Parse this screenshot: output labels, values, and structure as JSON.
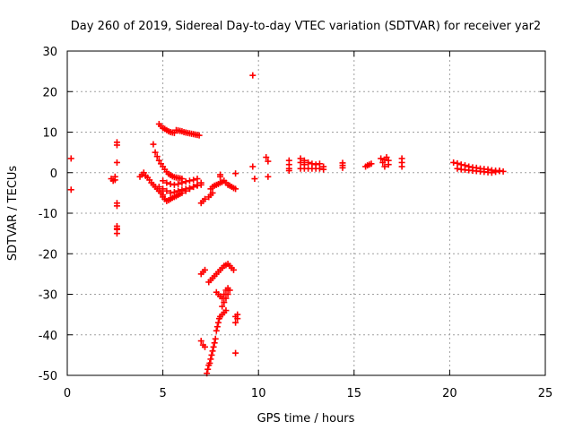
{
  "chart_data": {
    "type": "scatter",
    "title": "Day 260 of 2019, Sidereal Day-to-day VTEC variation (SDTVAR) for receiver yar2",
    "xlabel": "GPS time / hours",
    "ylabel": "SDTVAR / TECUs",
    "xlim": [
      0,
      25
    ],
    "ylim": [
      -50,
      30
    ],
    "xticks": [
      "0",
      "5",
      "10",
      "15",
      "20",
      "25"
    ],
    "yticks": [
      "30",
      "20",
      "10",
      "0",
      "-10",
      "-20",
      "-30",
      "-40",
      "-50"
    ],
    "xtick_values": [
      0,
      5,
      10,
      15,
      20,
      25
    ],
    "ytick_values": [
      30,
      20,
      10,
      0,
      -10,
      -20,
      -30,
      -40,
      -50
    ],
    "grid": true,
    "marker": "+",
    "color": "#ff0000",
    "series": [
      {
        "name": "yar2",
        "x": [
          0.2,
          0.2,
          2.3,
          2.4,
          2.5,
          2.5,
          2.6,
          2.6,
          2.6,
          2.6,
          2.6,
          2.6,
          2.6,
          2.6,
          2.6,
          3.8,
          3.9,
          4.0,
          4.1,
          4.2,
          4.3,
          4.4,
          4.5,
          4.6,
          4.7,
          4.8,
          4.9,
          5.0,
          4.5,
          4.6,
          4.7,
          4.8,
          4.9,
          5.0,
          5.1,
          5.2,
          5.3,
          5.4,
          5.5,
          5.6,
          5.7,
          5.8,
          5.9,
          6.0,
          4.8,
          4.9,
          5.0,
          5.1,
          5.2,
          5.3,
          5.4,
          5.5,
          5.6,
          5.7,
          5.8,
          5.9,
          6.0,
          6.1,
          6.2,
          6.3,
          6.4,
          6.5,
          6.6,
          6.7,
          6.8,
          6.9,
          4.8,
          5.0,
          5.2,
          5.4,
          5.6,
          5.8,
          6.0,
          6.2,
          6.4,
          6.6,
          6.8,
          7.0,
          5.0,
          5.1,
          5.2,
          5.3,
          5.4,
          5.5,
          5.6,
          5.7,
          5.8,
          5.9,
          6.0,
          6.2,
          6.4,
          6.6,
          6.8,
          7.0,
          5.0,
          5.2,
          5.4,
          5.6,
          5.8,
          6.0,
          6.2,
          6.4,
          6.6,
          6.8,
          7.0,
          7.1,
          7.2,
          7.4,
          7.5,
          7.6,
          7.5,
          7.6,
          7.7,
          7.8,
          7.9,
          8.0,
          8.1,
          8.2,
          8.3,
          8.4,
          8.5,
          8.6,
          8.7,
          8.8,
          8.0,
          8.0,
          8.8,
          9.7,
          9.8,
          9.7,
          10.4,
          10.5,
          10.5,
          7.0,
          7.1,
          7.2,
          7.0,
          7.1,
          7.2,
          7.4,
          7.5,
          7.6,
          7.7,
          7.8,
          7.9,
          8.0,
          8.1,
          8.2,
          8.3,
          8.4,
          8.5,
          8.6,
          8.7,
          7.8,
          7.9,
          8.0,
          8.1,
          8.2,
          8.3,
          8.4,
          7.3,
          7.35,
          7.4,
          7.45,
          7.5,
          7.55,
          7.6,
          7.65,
          7.7,
          7.75,
          7.8,
          7.85,
          7.9,
          7.95,
          8.0,
          8.1,
          8.2,
          8.3,
          8.8,
          8.9,
          8.8,
          8.9,
          8.8,
          8.1,
          8.2,
          8.3,
          8.4,
          8.5,
          11.6,
          11.6,
          11.6,
          11.6,
          12.2,
          12.2,
          12.2,
          12.4,
          12.4,
          12.4,
          12.6,
          12.6,
          12.8,
          12.8,
          13.0,
          13.0,
          13.2,
          13.2,
          13.4,
          13.4,
          14.4,
          14.4,
          14.4,
          15.6,
          15.7,
          15.8,
          15.9,
          16.4,
          16.5,
          16.6,
          16.7,
          16.8,
          16.8,
          16.6,
          17.5,
          17.5,
          17.5,
          20.2,
          20.4,
          20.6,
          20.8,
          21.0,
          21.2,
          21.4,
          21.6,
          21.8,
          22.0,
          22.2,
          22.4,
          22.6,
          22.8,
          20.4,
          20.6,
          20.8,
          21.0,
          21.2,
          21.4,
          21.6,
          21.8,
          22.0,
          22.2,
          22.4,
          22.6
        ],
        "y": [
          3.5,
          -4.2,
          -1.5,
          -2.0,
          -1.0,
          -1.8,
          7.5,
          6.8,
          2.5,
          -7.5,
          -8.2,
          -13.2,
          -14.0,
          -15.0,
          -13.8,
          -1.0,
          -0.5,
          0.0,
          -0.8,
          -1.2,
          -1.8,
          -2.5,
          -3.0,
          -3.5,
          -4.0,
          -4.5,
          -5.0,
          -5.5,
          7.0,
          5.0,
          4.0,
          3.0,
          2.2,
          1.5,
          0.8,
          0.2,
          -0.3,
          -0.6,
          -0.9,
          -1.1,
          -1.2,
          -1.3,
          -1.4,
          -1.5,
          12.0,
          11.5,
          11.0,
          10.8,
          10.5,
          10.2,
          10.0,
          9.9,
          9.8,
          10.5,
          10.4,
          10.3,
          10.2,
          10.0,
          9.9,
          9.8,
          9.7,
          9.6,
          9.5,
          9.4,
          9.3,
          9.2,
          -3.5,
          -4.0,
          -4.5,
          -5.0,
          -4.8,
          -4.5,
          -4.2,
          -4.0,
          -3.8,
          -3.5,
          -3.2,
          -3.0,
          -6.0,
          -6.5,
          -7.0,
          -6.8,
          -6.5,
          -6.2,
          -6.0,
          -5.8,
          -5.5,
          -5.2,
          -5.0,
          -4.5,
          -4.0,
          -3.5,
          -3.0,
          -2.5,
          -2.0,
          -2.5,
          -2.8,
          -3.0,
          -2.8,
          -2.5,
          -2.2,
          -2.0,
          -1.8,
          -1.5,
          -7.5,
          -7.0,
          -6.5,
          -6.0,
          -5.5,
          -5.0,
          -4.0,
          -3.5,
          -3.2,
          -3.0,
          -2.8,
          -2.5,
          -2.3,
          -2.0,
          -2.5,
          -3.0,
          -3.2,
          -3.5,
          -3.8,
          -4.0,
          -0.5,
          -1.0,
          -0.2,
          1.5,
          -1.5,
          24.0,
          3.8,
          2.8,
          -1.0,
          -25.0,
          -24.5,
          -24.0,
          -41.5,
          -42.5,
          -43.0,
          -27.0,
          -26.5,
          -26.0,
          -25.5,
          -25.0,
          -24.5,
          -24.0,
          -23.5,
          -23.0,
          -22.8,
          -22.5,
          -23.0,
          -23.5,
          -24.0,
          -29.5,
          -30.0,
          -30.5,
          -31.0,
          -30.0,
          -29.0,
          -28.5,
          -49.5,
          -48.5,
          -47.5,
          -47.0,
          -46.0,
          -45.0,
          -44.0,
          -43.0,
          -42.0,
          -41.0,
          -39.0,
          -38.0,
          -37.0,
          -36.0,
          -35.5,
          -35.0,
          -34.5,
          -34.0,
          -35.5,
          -36.0,
          -37.0,
          -35.0,
          -44.5,
          -33.0,
          -32.0,
          -31.0,
          -30.0,
          -29.0,
          3.0,
          2.0,
          1.0,
          0.5,
          3.5,
          2.5,
          1.0,
          3.0,
          2.0,
          1.0,
          2.5,
          1.0,
          2.2,
          1.0,
          2.0,
          1.0,
          2.2,
          1.0,
          1.5,
          0.8,
          1.2,
          1.8,
          2.4,
          1.5,
          1.8,
          2.0,
          2.2,
          3.5,
          2.5,
          1.5,
          3.8,
          3.0,
          2.0,
          3.2,
          3.5,
          2.5,
          1.5,
          2.5,
          2.3,
          2.0,
          1.8,
          1.5,
          1.3,
          1.2,
          1.0,
          0.9,
          0.8,
          0.6,
          0.5,
          0.4,
          0.3,
          1.0,
          0.8,
          0.7,
          0.6,
          0.5,
          0.4,
          0.3,
          0.2,
          0.1,
          0.0,
          0.2,
          0.5
        ]
      }
    ]
  }
}
